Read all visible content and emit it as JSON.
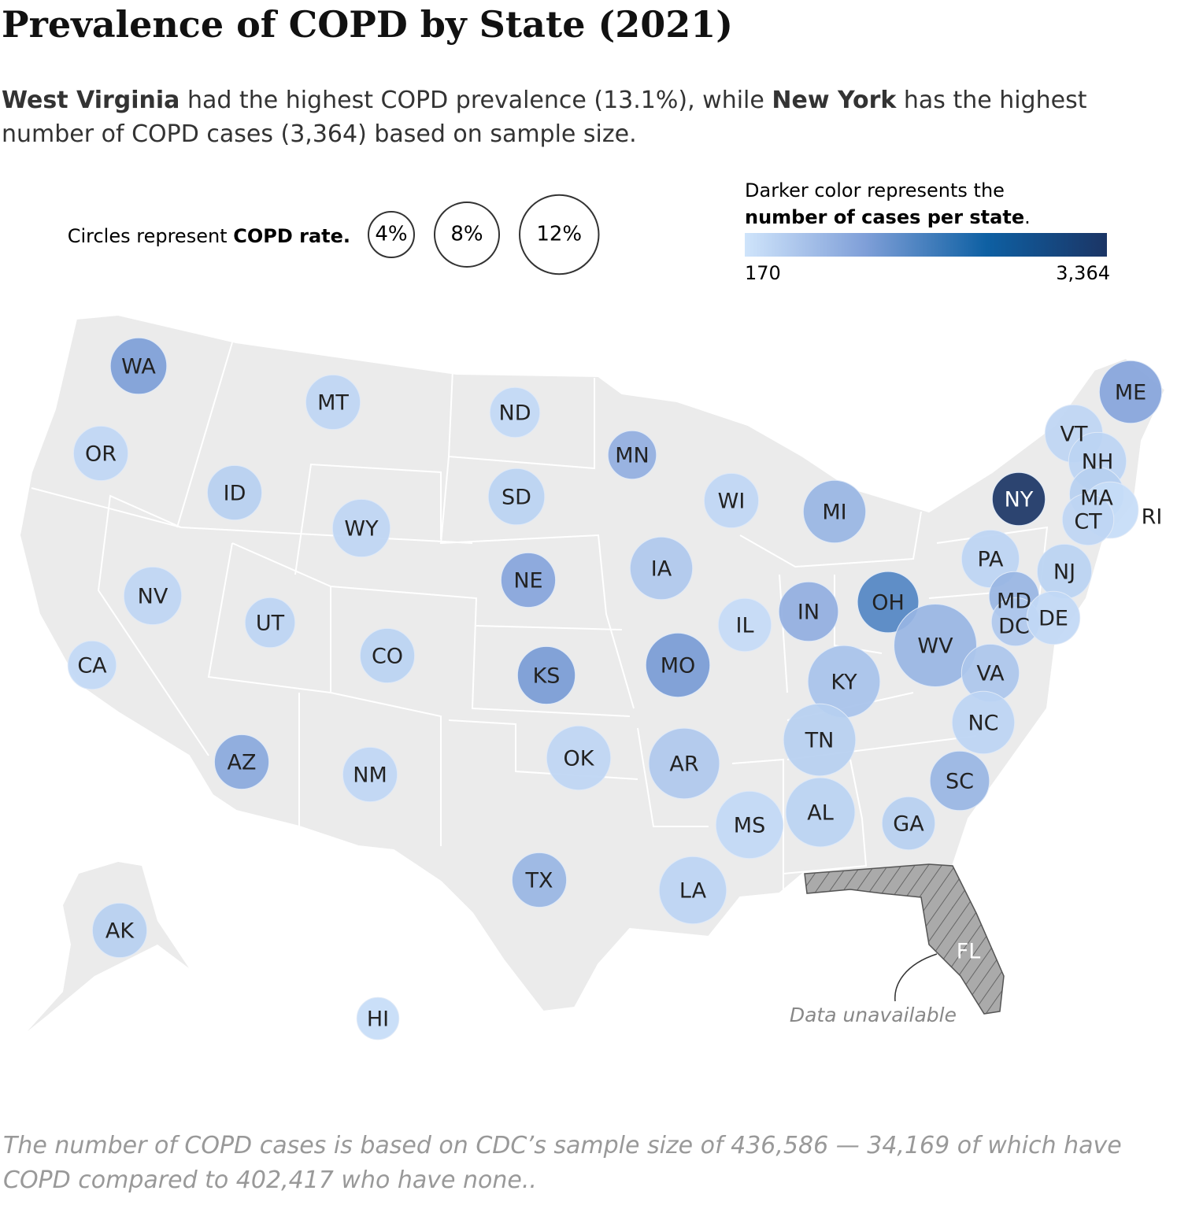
{
  "chart_data": {
    "type": "bubble-map",
    "title": "Prevalence of COPD by State (2021)",
    "subtitle": [
      "West Virginia",
      " had the highest COPD prevalence (13.1%), while ",
      "New York",
      " has the highest number of COPD cases (3,364) based on sample size."
    ],
    "size_legend": {
      "text": [
        "Circles represent ",
        "COPD rate."
      ],
      "ticks": [
        {
          "value": 4,
          "label": "4%"
        },
        {
          "value": 8,
          "label": "8%"
        },
        {
          "value": 12,
          "label": "12%"
        }
      ]
    },
    "color_legend": {
      "text": [
        "Darker color represents the ",
        "number of cases per state",
        "."
      ],
      "lim": [
        170,
        3364
      ],
      "ticks": [
        {
          "value": 170,
          "label": "170"
        },
        {
          "value": 3364,
          "label": "3,364"
        }
      ],
      "colors": [
        "#cfe4fb",
        "#7f9fd8",
        "#0e60a3",
        "#1b3565"
      ]
    },
    "categories": [
      "WA",
      "MT",
      "ND",
      "OR",
      "ID",
      "MN",
      "SD",
      "WY",
      "WI",
      "MI",
      "NE",
      "IA",
      "NV",
      "UT",
      "CO",
      "IL",
      "IN",
      "OH",
      "KS",
      "MO",
      "KY",
      "WV",
      "VA",
      "CA",
      "AZ",
      "NM",
      "OK",
      "AR",
      "TN",
      "NC",
      "SC",
      "AL",
      "MS",
      "GA",
      "LA",
      "TX",
      "AK",
      "HI",
      "ME",
      "VT",
      "NH",
      "MA",
      "RI",
      "CT",
      "NY",
      "PA",
      "NJ",
      "MD",
      "DC",
      "DE"
    ],
    "values": [
      6.1,
      5.7,
      4.8,
      5.7,
      5.7,
      4.5,
      6.1,
      6.4,
      5.7,
      7.5,
      5.7,
      7.5,
      6.4,
      4.8,
      5.7,
      5.4,
      6.8,
      7.2,
      6.4,
      7.9,
      10,
      13.1,
      6.4,
      4.5,
      5.7,
      5.7,
      7.9,
      9.6,
      10,
      7.5,
      6.8,
      9.2,
      8.7,
      5.4,
      8.7,
      5.7,
      5.7,
      3.4,
      7.5,
      6.4,
      6.4,
      5.7,
      6.1,
      5.1,
      5.4,
      6.4,
      5.7,
      4.8,
      4.5,
      5.4
    ],
    "cases": [
      1250,
      400,
      350,
      380,
      500,
      1000,
      450,
      400,
      380,
      900,
      1150,
      600,
      400,
      420,
      450,
      320,
      1000,
      1650,
      1300,
      1300,
      700,
      900,
      650,
      350,
      1100,
      380,
      400,
      600,
      500,
      420,
      900,
      450,
      350,
      500,
      420,
      900,
      500,
      300,
      1150,
      400,
      420,
      500,
      300,
      400,
      3364,
      420,
      450,
      900,
      600,
      350
    ],
    "unavailable": {
      "label": "FL",
      "note": "Data unavailable"
    },
    "footnote": "The number of COPD cases is based on CDC’s sample size of 436,586 — 34,169 of which have COPD compared to 402,417 who have none.."
  }
}
